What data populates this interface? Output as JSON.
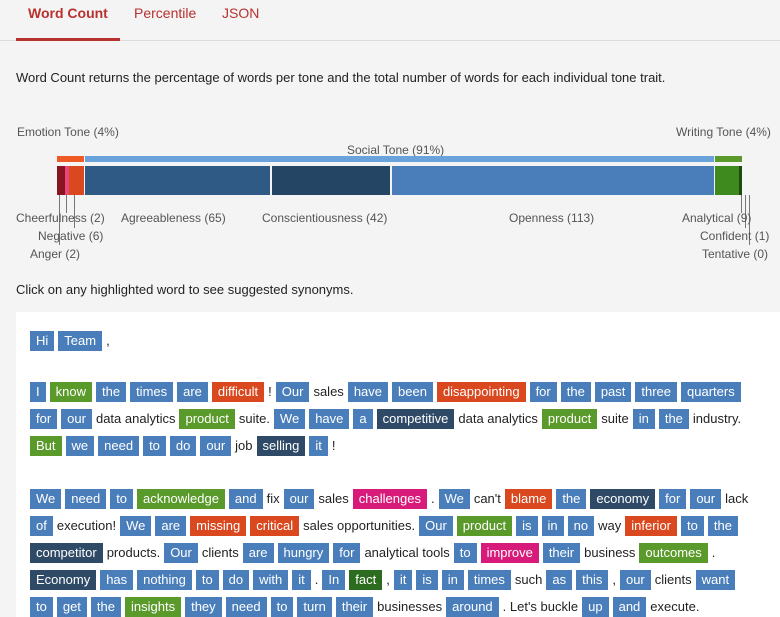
{
  "tabs": [
    "Word Count",
    "Percentile",
    "JSON"
  ],
  "description": "Word Count returns the percentage of words per tone and the total number of words for each individual tone trait.",
  "chart": {
    "emotion_label": "Emotion Tone (4%)",
    "social_label": "Social Tone (91%)",
    "writing_label": "Writing Tone (4%)",
    "traits": {
      "cheerfulness": "Cheerfulness (2)",
      "negative": "Negative (6)",
      "anger": "Anger (2)",
      "agreeableness": "Agreeableness (65)",
      "conscientiousness": "Conscientiousness (42)",
      "openness": "Openness (113)",
      "analytical": "Analytical (9)",
      "confident": "Confident (1)",
      "tentative": "Tentative (0)"
    },
    "colors": {
      "emotion": "#ef5a24",
      "social": "#4a7ebb",
      "writing": "#5a9a2a"
    }
  },
  "hint": "Click on any highlighted word to see suggested synonyms.",
  "paragraphs": [
    [
      [
        [
          "Hi",
          "blue"
        ],
        [
          "Team",
          "blue"
        ],
        [
          ",",
          "plain"
        ]
      ]
    ],
    [
      [
        [
          "I",
          "blue"
        ],
        [
          "know",
          "green"
        ],
        [
          "the",
          "blue"
        ],
        [
          "times",
          "blue"
        ],
        [
          "are",
          "blue"
        ],
        [
          "difficult",
          "orange"
        ],
        [
          "!",
          "plain"
        ],
        [
          "Our",
          "blue"
        ],
        [
          "sales",
          "plain"
        ],
        [
          "have",
          "blue"
        ],
        [
          "been",
          "blue"
        ],
        [
          "disappointing",
          "orange"
        ],
        [
          "for",
          "blue"
        ],
        [
          "the",
          "blue"
        ],
        [
          "past",
          "blue"
        ],
        [
          "three",
          "blue"
        ],
        [
          "quarters",
          "blue"
        ]
      ],
      [
        [
          "for",
          "blue"
        ],
        [
          "our",
          "blue"
        ],
        [
          "data analytics",
          "plain"
        ],
        [
          "product",
          "green"
        ],
        [
          "suite.",
          "plain"
        ],
        [
          "We",
          "blue"
        ],
        [
          "have",
          "blue"
        ],
        [
          "a",
          "blue"
        ],
        [
          "competitive",
          "navy"
        ],
        [
          "data analytics",
          "plain"
        ],
        [
          "product",
          "green"
        ],
        [
          "suite",
          "plain"
        ],
        [
          "in",
          "blue"
        ],
        [
          "the",
          "blue"
        ],
        [
          "industry.",
          "plain"
        ]
      ],
      [
        [
          "But",
          "green"
        ],
        [
          "we",
          "blue"
        ],
        [
          "need",
          "blue"
        ],
        [
          "to",
          "blue"
        ],
        [
          "do",
          "blue"
        ],
        [
          "our",
          "blue"
        ],
        [
          "job",
          "plain"
        ],
        [
          "selling",
          "navy"
        ],
        [
          "it",
          "blue"
        ],
        [
          "!",
          "plain"
        ]
      ]
    ],
    [
      [
        [
          "We",
          "blue"
        ],
        [
          "need",
          "blue"
        ],
        [
          "to",
          "blue"
        ],
        [
          "acknowledge",
          "green"
        ],
        [
          "and",
          "blue"
        ],
        [
          "fix",
          "plain"
        ],
        [
          "our",
          "blue"
        ],
        [
          "sales",
          "plain"
        ],
        [
          "challenges",
          "pink"
        ],
        [
          ".",
          "plain"
        ],
        [
          "We",
          "blue"
        ],
        [
          "can't",
          "plain"
        ],
        [
          "blame",
          "orange"
        ],
        [
          "the",
          "blue"
        ],
        [
          "economy",
          "navy"
        ],
        [
          "for",
          "blue"
        ],
        [
          "our",
          "blue"
        ],
        [
          "lack",
          "plain"
        ]
      ],
      [
        [
          "of",
          "blue"
        ],
        [
          "execution!",
          "plain"
        ],
        [
          "We",
          "blue"
        ],
        [
          "are",
          "blue"
        ],
        [
          "missing",
          "orange"
        ],
        [
          "critical",
          "orange"
        ],
        [
          "sales opportunities.",
          "plain"
        ],
        [
          "Our",
          "blue"
        ],
        [
          "product",
          "green"
        ],
        [
          "is",
          "blue"
        ],
        [
          "in",
          "blue"
        ],
        [
          "no",
          "blue"
        ],
        [
          "way",
          "plain"
        ],
        [
          "inferior",
          "orange"
        ],
        [
          "to",
          "blue"
        ],
        [
          "the",
          "blue"
        ]
      ],
      [
        [
          "competitor",
          "navy"
        ],
        [
          "products.",
          "plain"
        ],
        [
          "Our",
          "blue"
        ],
        [
          "clients",
          "plain"
        ],
        [
          "are",
          "blue"
        ],
        [
          "hungry",
          "blue"
        ],
        [
          "for",
          "blue"
        ],
        [
          "analytical tools",
          "plain"
        ],
        [
          "to",
          "blue"
        ],
        [
          "improve",
          "pink"
        ],
        [
          "their",
          "blue"
        ],
        [
          "business",
          "plain"
        ],
        [
          "outcomes",
          "green"
        ],
        [
          ".",
          "plain"
        ]
      ],
      [
        [
          "Economy",
          "navy"
        ],
        [
          "has",
          "blue"
        ],
        [
          "nothing",
          "blue"
        ],
        [
          "to",
          "blue"
        ],
        [
          "do",
          "blue"
        ],
        [
          "with",
          "blue"
        ],
        [
          "it",
          "blue"
        ],
        [
          ".",
          "plain"
        ],
        [
          "In",
          "blue"
        ],
        [
          "fact",
          "dkgreen"
        ],
        [
          ",",
          "plain"
        ],
        [
          "it",
          "blue"
        ],
        [
          "is",
          "blue"
        ],
        [
          "in",
          "blue"
        ],
        [
          "times",
          "blue"
        ],
        [
          "such",
          "plain"
        ],
        [
          "as",
          "blue"
        ],
        [
          "this",
          "blue"
        ],
        [
          ",",
          "plain"
        ],
        [
          "our",
          "blue"
        ],
        [
          "clients",
          "plain"
        ],
        [
          "want",
          "blue"
        ]
      ],
      [
        [
          "to",
          "blue"
        ],
        [
          "get",
          "blue"
        ],
        [
          "the",
          "blue"
        ],
        [
          "insights",
          "green"
        ],
        [
          "they",
          "blue"
        ],
        [
          "need",
          "blue"
        ],
        [
          "to",
          "blue"
        ],
        [
          "turn",
          "blue"
        ],
        [
          "their",
          "blue"
        ],
        [
          "businesses",
          "plain"
        ],
        [
          "around",
          "blue"
        ],
        [
          ". Let's buckle",
          "plain"
        ],
        [
          "up",
          "blue"
        ],
        [
          "and",
          "blue"
        ],
        [
          "execute.",
          "plain"
        ]
      ]
    ]
  ]
}
